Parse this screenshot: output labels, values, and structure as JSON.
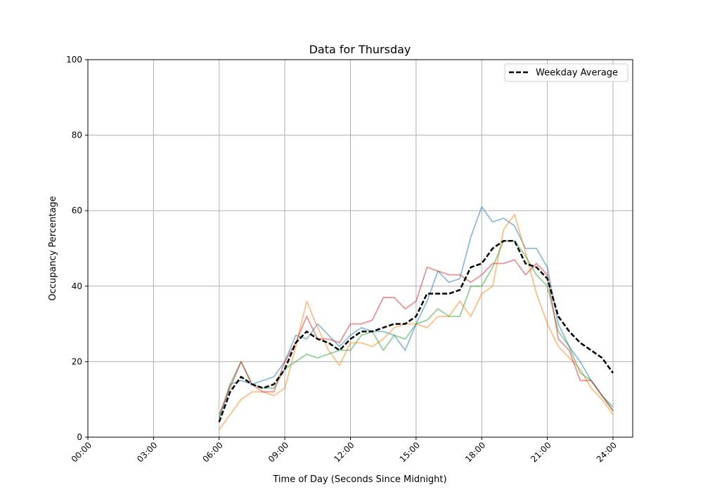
{
  "chart_data": {
    "type": "line",
    "title": "Data for Thursday",
    "xlabel": "Time of Day (Seconds Since Midnight)",
    "ylabel": "Occupancy Percentage",
    "xlim_hours": [
      0,
      24.9
    ],
    "ylim": [
      0,
      100
    ],
    "grid": true,
    "legend_placement": "top-right",
    "x_tick_labels": [
      "00:00",
      "03:00",
      "06:00",
      "09:00",
      "12:00",
      "15:00",
      "18:00",
      "21:00",
      "24:00"
    ],
    "x_tick_hours": [
      0,
      3,
      6,
      9,
      12,
      15,
      18,
      21,
      24
    ],
    "y_ticks": [
      0,
      20,
      40,
      60,
      80,
      100
    ],
    "x_hours": [
      6,
      6.5,
      7,
      7.5,
      8,
      8.5,
      9,
      9.5,
      10,
      10.5,
      11,
      11.5,
      12,
      12.5,
      13,
      13.5,
      14,
      14.5,
      15,
      15.5,
      16,
      16.5,
      17,
      17.5,
      18,
      18.5,
      19,
      19.5,
      20,
      20.5,
      21,
      21.5,
      22,
      22.5,
      23,
      23.5,
      24
    ],
    "series": [
      {
        "color": "#1f77b4",
        "alpha": 0.5,
        "style": "solid",
        "values": [
          5,
          14,
          15,
          14,
          15,
          16,
          20,
          27,
          26,
          30,
          27,
          24,
          27,
          29,
          28,
          28,
          27,
          23,
          30,
          36,
          44,
          41,
          42,
          53,
          61,
          57,
          58,
          56,
          50,
          50,
          45,
          30,
          24,
          20,
          15,
          11,
          8
        ]
      },
      {
        "color": "#ff7f0e",
        "alpha": 0.5,
        "style": "solid",
        "values": [
          2,
          6,
          10,
          12,
          12,
          11,
          13,
          24,
          36,
          29,
          23,
          19,
          25,
          25,
          24,
          26,
          29,
          30,
          30,
          29,
          32,
          32,
          36,
          32,
          38,
          40,
          55,
          59,
          49,
          38,
          30,
          24,
          21,
          18,
          13,
          10,
          6
        ]
      },
      {
        "color": "#2ca02c",
        "alpha": 0.5,
        "style": "solid",
        "values": [
          5,
          14,
          20,
          14,
          13,
          13,
          18,
          20,
          22,
          21,
          22,
          23,
          23,
          27,
          28,
          23,
          27,
          26,
          30,
          31,
          34,
          32,
          32,
          40,
          40,
          45,
          52,
          52,
          48,
          43,
          40,
          28,
          24,
          17,
          15,
          11,
          7
        ]
      },
      {
        "color": "#d62728",
        "alpha": 0.5,
        "style": "solid",
        "values": [
          6,
          13,
          20,
          14,
          12,
          12,
          20,
          25,
          32,
          26,
          26,
          25,
          30,
          30,
          31,
          37,
          37,
          34,
          36,
          45,
          44,
          43,
          43,
          41,
          43,
          46,
          46,
          47,
          43,
          46,
          43,
          26,
          23,
          15,
          15,
          11,
          7
        ]
      },
      {
        "name": "Weekday Average",
        "color": "#000000",
        "alpha": 1,
        "style": "dashed",
        "values": [
          4,
          12,
          16,
          14,
          13,
          14,
          18,
          25,
          28,
          26,
          25,
          23,
          26,
          28,
          28,
          29,
          30,
          30,
          32,
          38,
          38,
          38,
          39,
          45,
          46,
          50,
          52,
          52,
          46,
          45,
          42,
          32,
          28,
          25,
          23,
          21,
          17
        ]
      }
    ]
  }
}
